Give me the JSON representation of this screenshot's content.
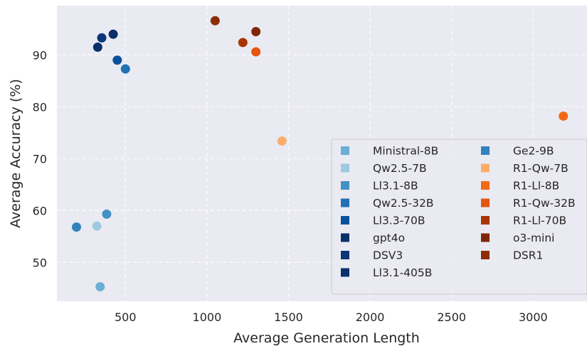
{
  "chart_data": {
    "type": "scatter",
    "xlabel": "Average Generation Length",
    "ylabel": "Average Accuracy (%)",
    "xlim": [
      80,
      3330
    ],
    "ylim": [
      42.5,
      99.5
    ],
    "xticks": [
      500,
      1000,
      1500,
      2000,
      2500,
      3000
    ],
    "yticks": [
      50,
      60,
      70,
      80,
      90
    ],
    "grid": true,
    "legend_position": "bottom-right",
    "legend_columns": 2,
    "series": [
      {
        "name": "Ministral-8B",
        "color": "#6baed6",
        "x": 345,
        "y": 45.3
      },
      {
        "name": "Qw2.5-7B",
        "color": "#9ecae1",
        "x": 325,
        "y": 57.0
      },
      {
        "name": "Ll3.1-8B",
        "color": "#4292c6",
        "x": 385,
        "y": 59.3
      },
      {
        "name": "Qw2.5-32B",
        "color": "#2171b5",
        "x": 500,
        "y": 87.3
      },
      {
        "name": "Ll3.3-70B",
        "color": "#08519c",
        "x": 450,
        "y": 89.0
      },
      {
        "name": "gpt4o",
        "color": "#08306b",
        "x": 330,
        "y": 91.5
      },
      {
        "name": "DSV3",
        "color": "#0b3577",
        "x": 355,
        "y": 93.3
      },
      {
        "name": "Ll3.1-405B",
        "color": "#0a2f6b",
        "x": 425,
        "y": 94.0
      },
      {
        "name": "Ge2-9B",
        "color": "#3182bd",
        "x": 200,
        "y": 56.8
      },
      {
        "name": "R1-Qw-7B",
        "color": "#fdae6b",
        "x": 1460,
        "y": 73.4
      },
      {
        "name": "R1-Ll-8B",
        "color": "#f16913",
        "x": 3185,
        "y": 78.2
      },
      {
        "name": "R1-Qw-32B",
        "color": "#e6550d",
        "x": 1300,
        "y": 90.6
      },
      {
        "name": "R1-Ll-70B",
        "color": "#a63603",
        "x": 1220,
        "y": 92.4
      },
      {
        "name": "o3-mini",
        "color": "#7f2704",
        "x": 1300,
        "y": 94.5
      },
      {
        "name": "DSR1",
        "color": "#8c2d04",
        "x": 1050,
        "y": 96.6
      }
    ]
  }
}
